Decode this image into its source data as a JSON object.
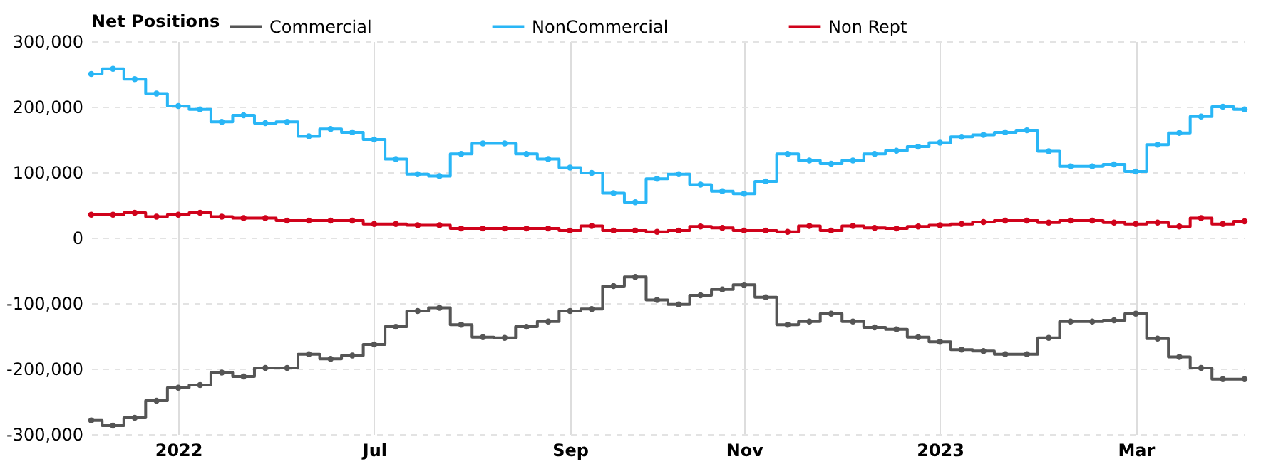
{
  "chart_data": {
    "type": "step",
    "legend_title": "Net Positions",
    "legend": "top",
    "marker": "circle",
    "grid": true,
    "categories": [
      null,
      null,
      null,
      null,
      "2022",
      null,
      null,
      null,
      null,
      null,
      null,
      null,
      null,
      "Jul",
      null,
      null,
      null,
      null,
      null,
      null,
      null,
      null,
      "Sep",
      null,
      null,
      null,
      null,
      null,
      null,
      null,
      "Nov",
      null,
      null,
      null,
      null,
      null,
      null,
      null,
      null,
      "2023",
      null,
      null,
      null,
      null,
      null,
      null,
      null,
      null,
      "Mar",
      null,
      null,
      null,
      null,
      null
    ],
    "series": [
      {
        "name": "Commercial",
        "color": "#555555",
        "values": [
          -279000,
          -287000,
          -275000,
          -249000,
          -229000,
          -225000,
          -206000,
          -212000,
          -199000,
          -199000,
          -178000,
          -185000,
          -180000,
          -163000,
          -136000,
          -112000,
          -107000,
          -133000,
          -152000,
          -153000,
          -136000,
          -128000,
          -112000,
          -109000,
          -74000,
          -60000,
          -95000,
          -102000,
          -88000,
          -79000,
          -72000,
          -91000,
          -133000,
          -128000,
          -116000,
          -128000,
          -137000,
          -140000,
          -152000,
          -159000,
          -171000,
          -173000,
          -178000,
          -178000,
          -153000,
          -128000,
          -128000,
          -126000,
          -116000,
          -154000,
          -182000,
          -199000,
          -216000,
          -216000
        ]
      },
      {
        "name": "NonCommercial",
        "color": "#29b6f6",
        "values": [
          250000,
          258000,
          242000,
          220000,
          201000,
          196000,
          177000,
          187000,
          175000,
          177000,
          155000,
          166000,
          161000,
          150000,
          120000,
          97000,
          94000,
          128000,
          144000,
          144000,
          128000,
          120000,
          107000,
          99000,
          68000,
          54000,
          90000,
          97000,
          81000,
          71000,
          67000,
          86000,
          128000,
          118000,
          113000,
          118000,
          128000,
          133000,
          139000,
          145000,
          154000,
          157000,
          161000,
          164000,
          132000,
          109000,
          109000,
          112000,
          101000,
          142000,
          160000,
          185000,
          200000,
          196000
        ]
      },
      {
        "name": "Non Rept",
        "color": "#d0021b",
        "values": [
          35000,
          35000,
          38000,
          32000,
          35000,
          38000,
          32000,
          30000,
          30000,
          26000,
          26000,
          26000,
          26000,
          21000,
          21000,
          19000,
          19000,
          14000,
          14000,
          14000,
          14000,
          14000,
          11000,
          18000,
          11000,
          11000,
          9000,
          11000,
          17000,
          15000,
          11000,
          11000,
          9000,
          18000,
          11000,
          18000,
          15000,
          14000,
          17000,
          19000,
          21000,
          24000,
          26000,
          26000,
          23000,
          26000,
          26000,
          23000,
          21000,
          23000,
          17000,
          30000,
          21000,
          25000
        ]
      }
    ],
    "ylim": [
      -300000,
      300000
    ],
    "yticks": [
      {
        "value": -300000,
        "label": "-300,000"
      },
      {
        "value": -200000,
        "label": "-200,000"
      },
      {
        "value": -100000,
        "label": "-100,000"
      },
      0,
      {
        "value": 100000,
        "label": "100,000"
      },
      {
        "value": 200000,
        "label": "200,000"
      },
      {
        "value": 300000,
        "label": "300,000"
      }
    ]
  }
}
